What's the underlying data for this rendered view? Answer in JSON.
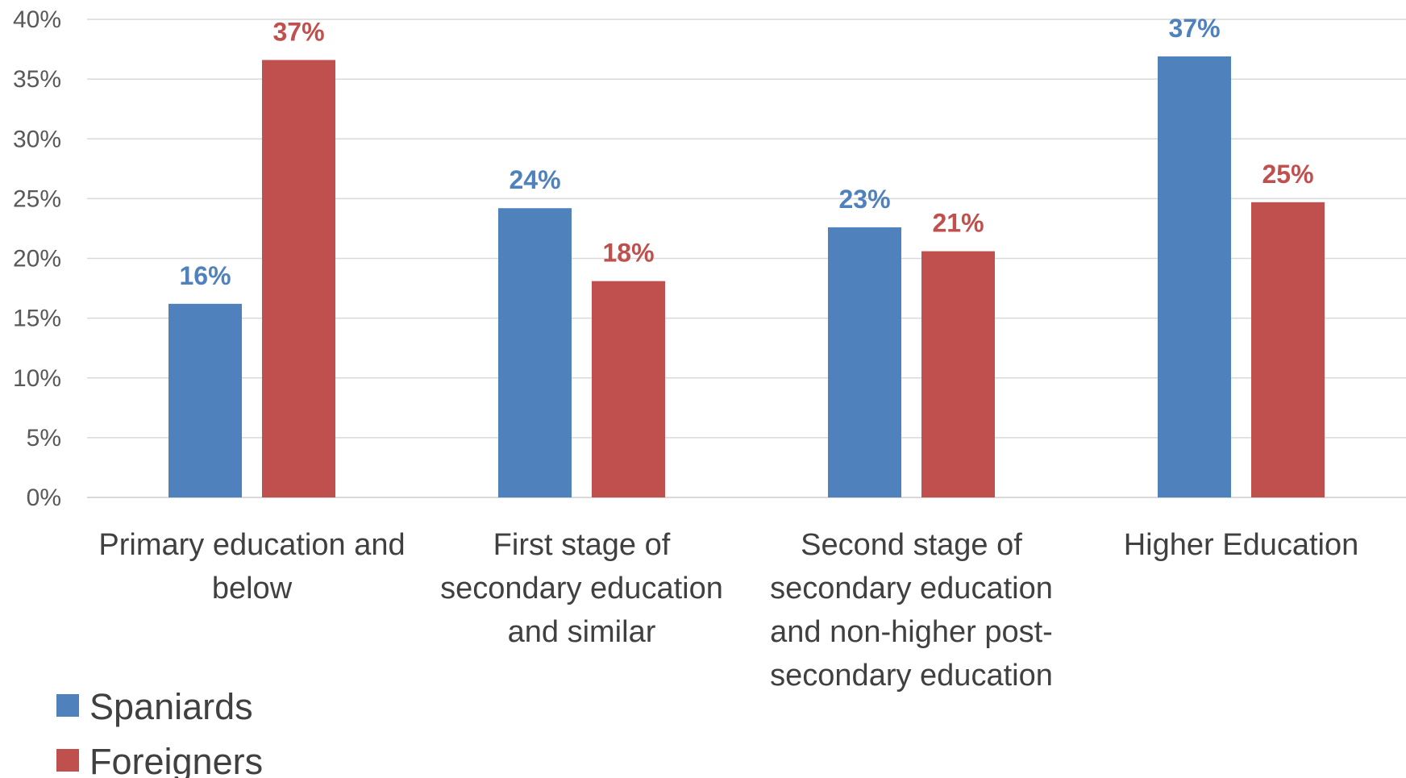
{
  "chart_data": {
    "type": "bar",
    "categories": [
      [
        "Primary education and",
        "below"
      ],
      [
        "First stage of",
        "secondary education",
        "and similar"
      ],
      [
        "Second stage of",
        "secondary education",
        "and non-higher post-",
        "secondary education"
      ],
      [
        "Higher Education"
      ]
    ],
    "series": [
      {
        "name": "Spaniards",
        "color": "#4f81bd",
        "values": [
          16.2,
          24.2,
          22.6,
          36.9
        ],
        "labels": [
          "16%",
          "24%",
          "23%",
          "37%"
        ]
      },
      {
        "name": "Foreigners",
        "color": "#c0504d",
        "values": [
          36.6,
          18.1,
          20.6,
          24.7
        ],
        "labels": [
          "37%",
          "18%",
          "21%",
          "25%"
        ]
      }
    ],
    "ylim": [
      0,
      40
    ],
    "yticks": [
      {
        "value": 0,
        "label": "0%"
      },
      {
        "value": 5,
        "label": "5%"
      },
      {
        "value": 10,
        "label": "10%"
      },
      {
        "value": 15,
        "label": "15%"
      },
      {
        "value": 20,
        "label": "20%"
      },
      {
        "value": 25,
        "label": "25%"
      },
      {
        "value": 30,
        "label": "30%"
      },
      {
        "value": 35,
        "label": "35%"
      },
      {
        "value": 40,
        "label": "40%"
      }
    ],
    "grid": true,
    "legend": "bottom-left",
    "title": "",
    "xlabel": "",
    "ylabel": ""
  }
}
